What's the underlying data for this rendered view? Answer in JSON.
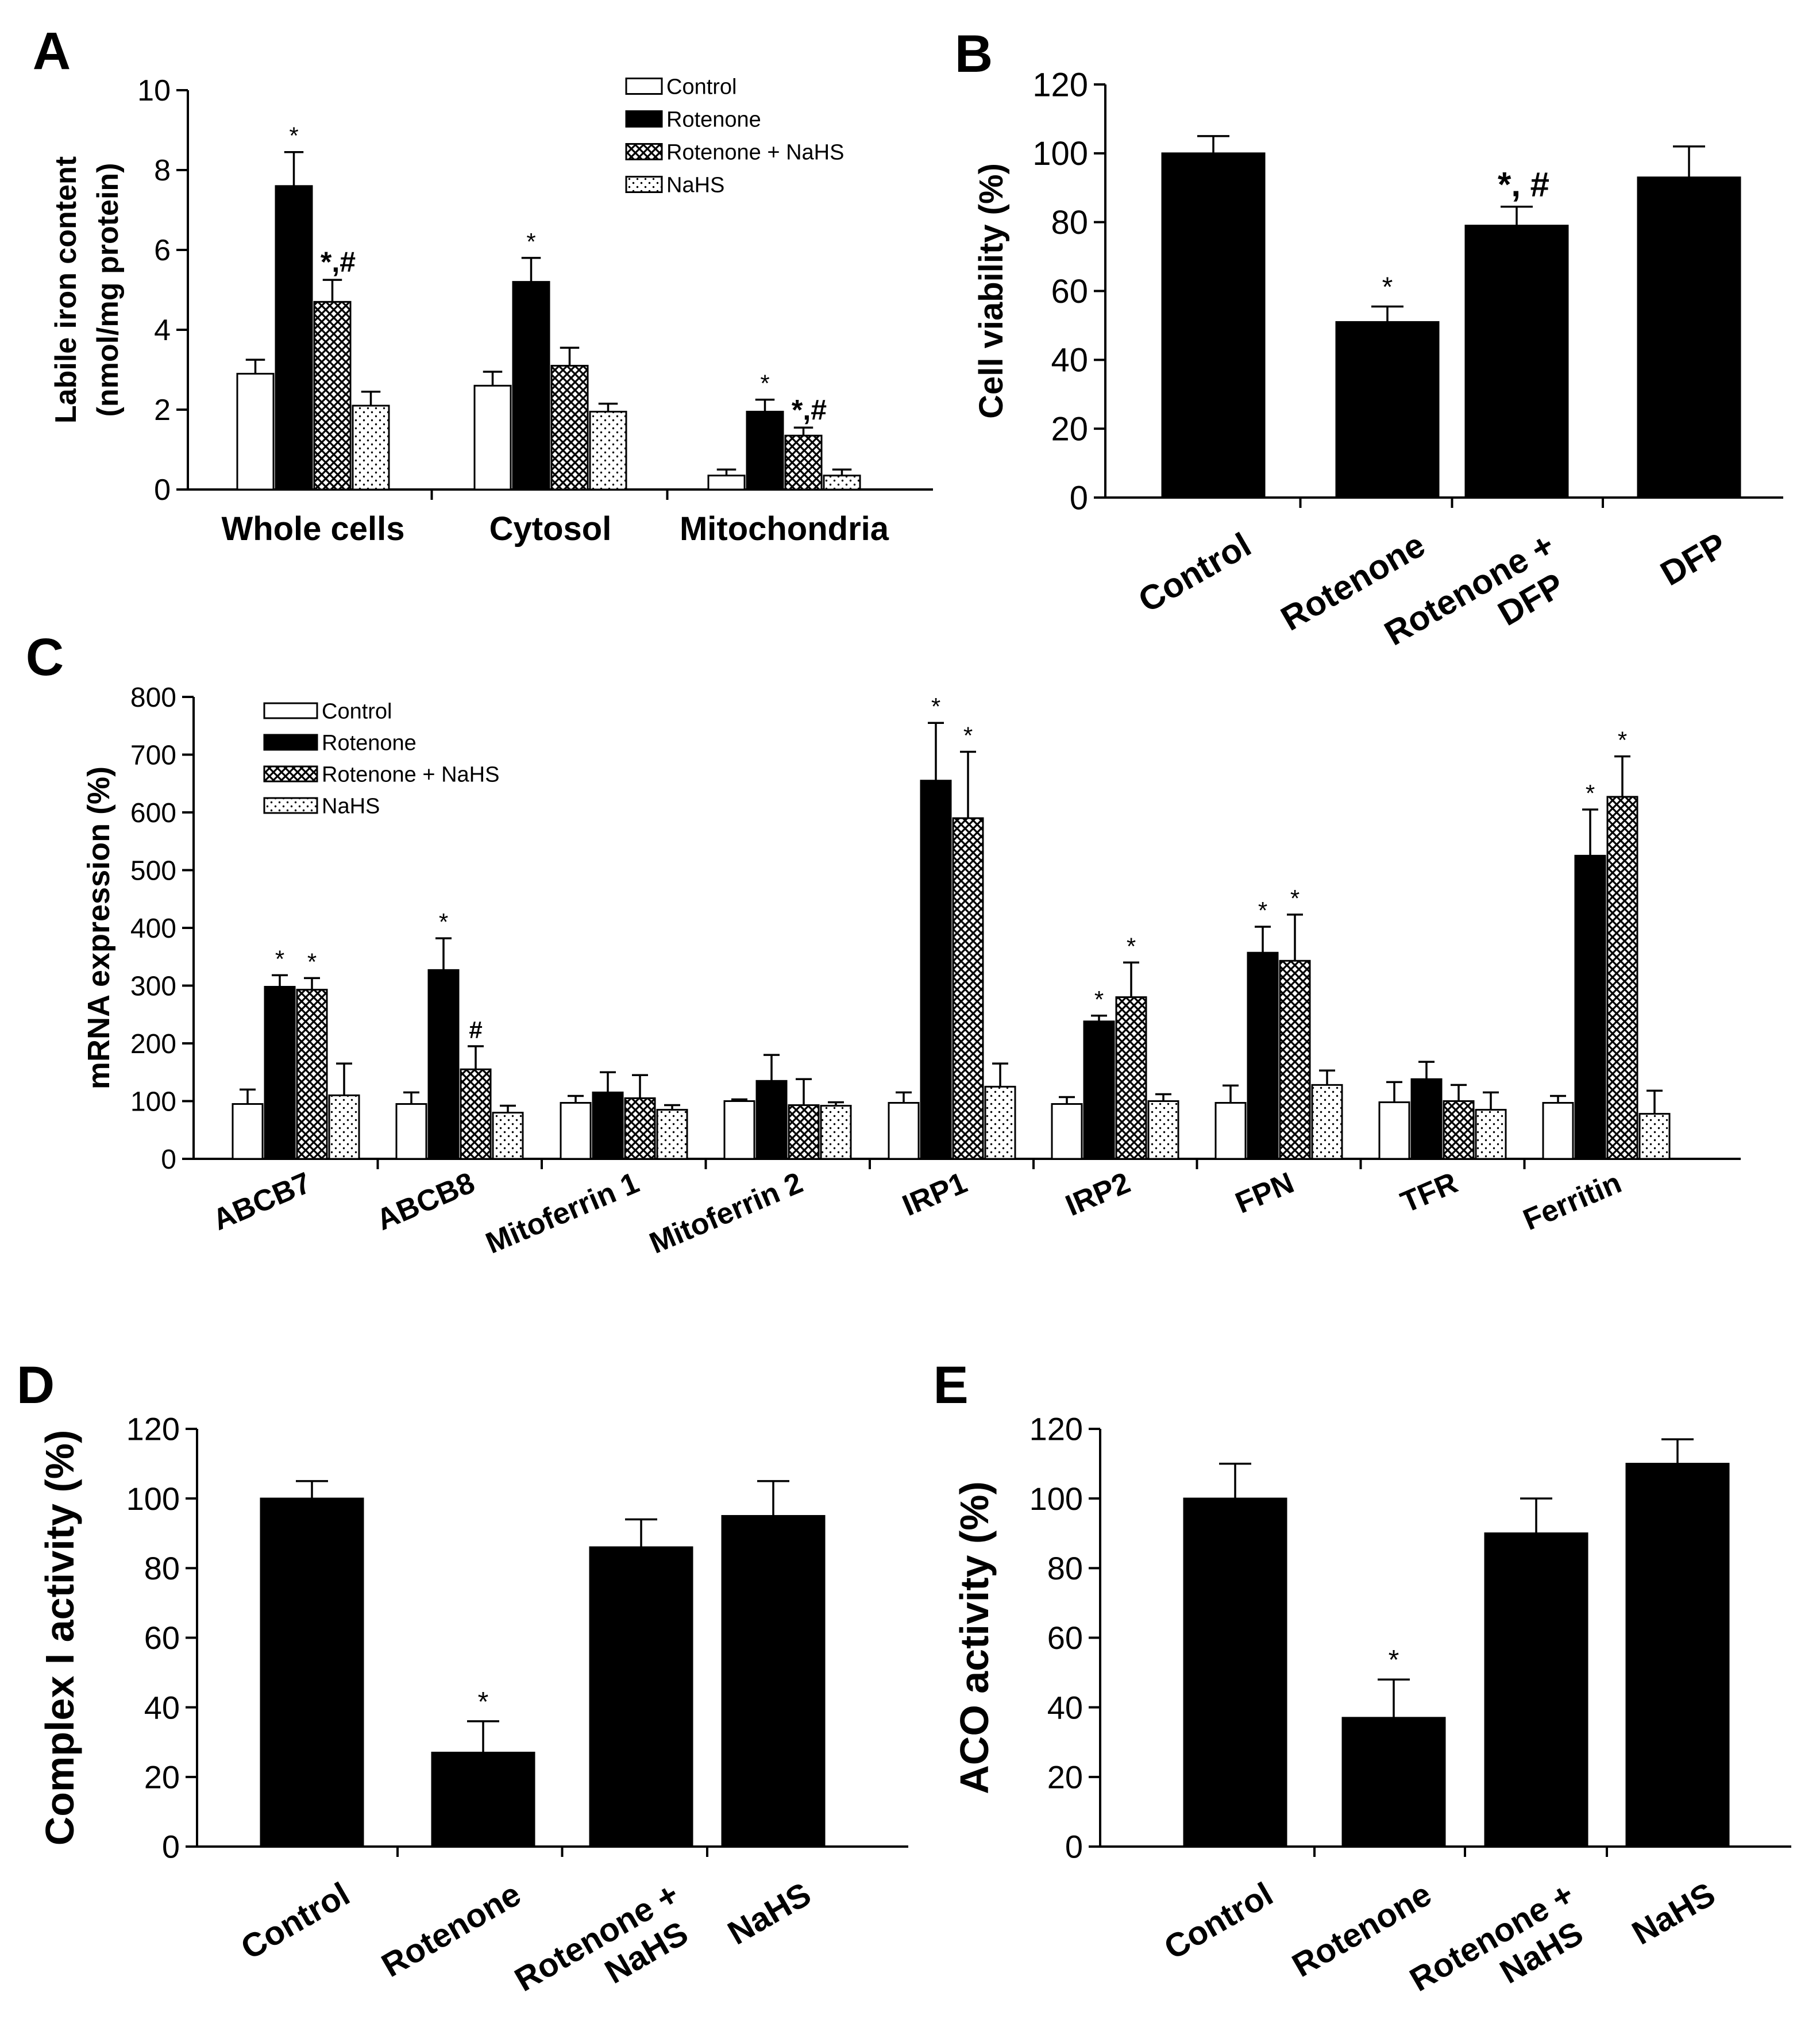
{
  "colors": {
    "black": "#000000",
    "white": "#ffffff",
    "hatch": "#000000",
    "dots": "#000000"
  },
  "chart_data": [
    {
      "panel": "A",
      "type": "bar",
      "panel_label": "A",
      "ylabel_line1": "Labile iron content",
      "ylabel_line2": "(nmol/mg protein)",
      "ylim": [
        0,
        10
      ],
      "yticks": [
        0,
        2,
        4,
        6,
        8,
        10
      ],
      "categories": [
        "Whole cells",
        "Cytosol",
        "Mitochondria"
      ],
      "legend": [
        "Control",
        "Rotenone",
        "Rotenone + NaHS",
        "NaHS"
      ],
      "series": [
        {
          "name": "Control",
          "pattern": "white",
          "values": [
            2.9,
            2.6,
            0.35
          ],
          "errors": [
            0.35,
            0.35,
            0.15
          ],
          "annotations": [
            "",
            "",
            ""
          ]
        },
        {
          "name": "Rotenone",
          "pattern": "black",
          "values": [
            7.6,
            5.2,
            1.95
          ],
          "errors": [
            0.85,
            0.6,
            0.3
          ],
          "annotations": [
            "*",
            "*",
            "*"
          ]
        },
        {
          "name": "Rotenone + NaHS",
          "pattern": "hatch",
          "values": [
            4.7,
            3.1,
            1.35
          ],
          "errors": [
            0.55,
            0.45,
            0.2
          ],
          "annotations": [
            "*,#",
            "",
            "*,#"
          ]
        },
        {
          "name": "NaHS",
          "pattern": "dots",
          "values": [
            2.1,
            1.95,
            0.35
          ],
          "errors": [
            0.35,
            0.2,
            0.15
          ],
          "annotations": [
            "",
            "",
            ""
          ]
        }
      ]
    },
    {
      "panel": "B",
      "type": "bar",
      "panel_label": "B",
      "ylabel": "Cell viability (%)",
      "ylim": [
        0,
        120
      ],
      "yticks": [
        0,
        20,
        40,
        60,
        80,
        100,
        120
      ],
      "categories": [
        "Control",
        "Rotenone",
        "Rotenone +\nDFP",
        "DFP"
      ],
      "values": [
        100,
        51,
        79,
        93
      ],
      "errors": [
        5,
        4.5,
        5.5,
        9
      ],
      "annotations": [
        "",
        "*",
        "*, #",
        ""
      ]
    },
    {
      "panel": "C",
      "type": "bar",
      "panel_label": "C",
      "ylabel": "mRNA expression (%)",
      "ylim": [
        0,
        800
      ],
      "yticks": [
        0,
        100,
        200,
        300,
        400,
        500,
        600,
        700,
        800
      ],
      "categories": [
        "ABCB7",
        "ABCB8",
        "Mitoferrin 1",
        "Mitoferrin 2",
        "IRP1",
        "IRP2",
        "FPN",
        "TFR",
        "Ferritin"
      ],
      "legend": [
        "Control",
        "Rotenone",
        "Rotenone + NaHS",
        "NaHS"
      ],
      "series": [
        {
          "name": "Control",
          "pattern": "white",
          "values": [
            95,
            95,
            97,
            100,
            97,
            95,
            97,
            98,
            97
          ],
          "errors": [
            25,
            20,
            12,
            3,
            18,
            12,
            30,
            35,
            12
          ],
          "annotations": [
            "",
            "",
            "",
            "",
            "",
            "",
            "",
            "",
            ""
          ]
        },
        {
          "name": "Rotenone",
          "pattern": "black",
          "values": [
            298,
            327,
            115,
            135,
            655,
            238,
            357,
            138,
            525
          ],
          "errors": [
            20,
            55,
            35,
            45,
            100,
            10,
            45,
            30,
            80
          ],
          "annotations": [
            "*",
            "*",
            "",
            "",
            "*",
            "*",
            "*",
            "",
            "*"
          ]
        },
        {
          "name": "Rotenone + NaHS",
          "pattern": "hatch",
          "values": [
            293,
            155,
            105,
            93,
            590,
            280,
            343,
            100,
            627
          ],
          "errors": [
            20,
            40,
            40,
            45,
            115,
            60,
            80,
            28,
            70
          ],
          "annotations": [
            "*",
            "#",
            "",
            "",
            "*",
            "*",
            "*",
            "",
            "*"
          ]
        },
        {
          "name": "NaHS",
          "pattern": "dots",
          "values": [
            110,
            80,
            85,
            92,
            125,
            100,
            128,
            85,
            78
          ],
          "errors": [
            55,
            12,
            8,
            6,
            40,
            12,
            25,
            30,
            40
          ],
          "annotations": [
            "",
            "",
            "",
            "",
            "",
            "",
            "",
            "",
            ""
          ]
        }
      ]
    },
    {
      "panel": "D",
      "type": "bar",
      "panel_label": "D",
      "ylabel": "Complex I activity (%)",
      "ylim": [
        0,
        120
      ],
      "yticks": [
        0,
        20,
        40,
        60,
        80,
        100,
        120
      ],
      "categories": [
        "Control",
        "Rotenone",
        "Rotenone +\nNaHS",
        "NaHS"
      ],
      "values": [
        100,
        27,
        86,
        95
      ],
      "errors": [
        5,
        9,
        8,
        10
      ],
      "annotations": [
        "",
        "*",
        "",
        ""
      ]
    },
    {
      "panel": "E",
      "type": "bar",
      "panel_label": "E",
      "ylabel": "ACO activity (%)",
      "ylim": [
        0,
        120
      ],
      "yticks": [
        0,
        20,
        40,
        60,
        80,
        100,
        120
      ],
      "categories": [
        "Control",
        "Rotenone",
        "Rotenone +\nNaHS",
        "NaHS"
      ],
      "values": [
        100,
        37,
        90,
        110
      ],
      "errors": [
        10,
        11,
        10,
        7
      ],
      "annotations": [
        "",
        "*",
        "",
        ""
      ]
    }
  ]
}
